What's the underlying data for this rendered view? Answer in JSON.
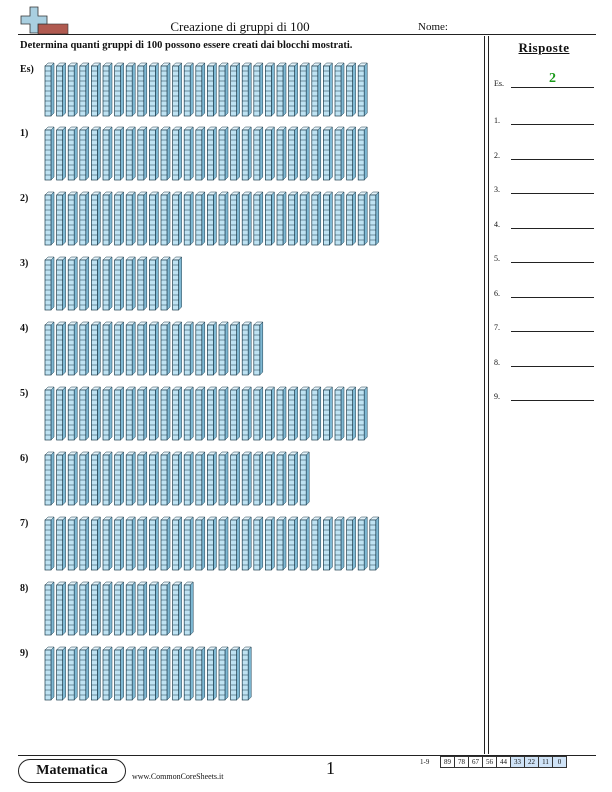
{
  "header": {
    "title": "Creazione di gruppi di 100",
    "name_label": "Nome:"
  },
  "instructions": "Determina quanti gruppi di 100 possono essere creati dai blocchi mostrati.",
  "answers": {
    "title": "Risposte",
    "rows": [
      {
        "label": "Es.",
        "value": "2"
      },
      {
        "label": "1.",
        "value": ""
      },
      {
        "label": "2.",
        "value": ""
      },
      {
        "label": "3.",
        "value": ""
      },
      {
        "label": "4.",
        "value": ""
      },
      {
        "label": "5.",
        "value": ""
      },
      {
        "label": "6.",
        "value": ""
      },
      {
        "label": "7.",
        "value": ""
      },
      {
        "label": "8.",
        "value": ""
      },
      {
        "label": "9.",
        "value": ""
      }
    ]
  },
  "problems": [
    {
      "label": "Es)",
      "rods": 28
    },
    {
      "label": "1)",
      "rods": 28
    },
    {
      "label": "2)",
      "rods": 29
    },
    {
      "label": "3)",
      "rods": 12
    },
    {
      "label": "4)",
      "rods": 19
    },
    {
      "label": "5)",
      "rods": 28
    },
    {
      "label": "6)",
      "rods": 23
    },
    {
      "label": "7)",
      "rods": 29
    },
    {
      "label": "8)",
      "rods": 13
    },
    {
      "label": "9)",
      "rods": 18
    }
  ],
  "footer": {
    "brand": "Matematica",
    "site": "www.CommonCoreSheets.it",
    "page": "1",
    "range_label": "1-9",
    "scores": [
      "89",
      "78",
      "67",
      "56",
      "44",
      "33",
      "22",
      "11",
      "0"
    ]
  },
  "colors": {
    "rod_fill": "#bfe3f3",
    "rod_stroke": "#1a3a4a",
    "answer_green": "#1a9a1a",
    "score_highlight": "#cfe3f7",
    "logo_blue": "#a9cfe0",
    "logo_red": "#b05a50"
  }
}
